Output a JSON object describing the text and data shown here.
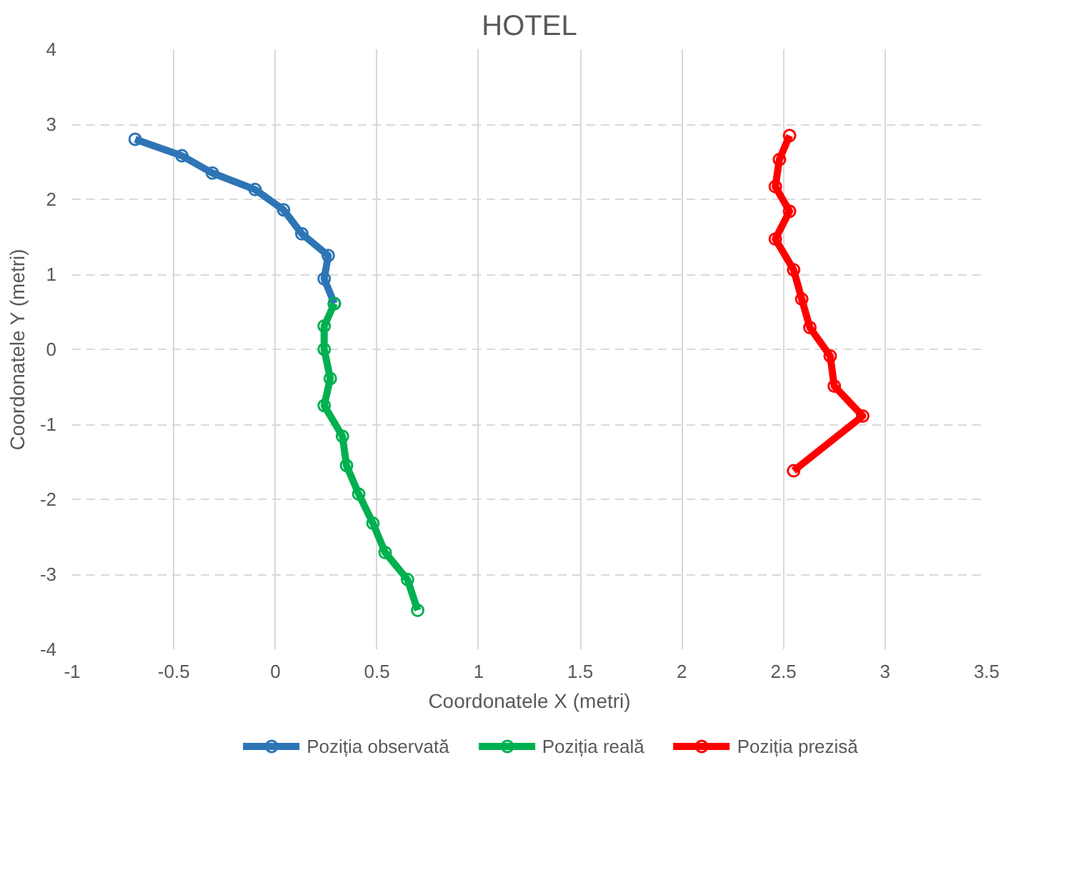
{
  "chart_data": {
    "type": "line",
    "title": "HOTEL",
    "xlabel": "Coordonatele X (metri)",
    "ylabel": "Coordonatele Y (metri)",
    "xlim": [
      -1,
      3.5
    ],
    "ylim": [
      -4,
      4
    ],
    "xticks": [
      -1,
      -0.5,
      0,
      0.5,
      1,
      1.5,
      2,
      2.5,
      3,
      3.5
    ],
    "yticks": [
      -4,
      -3,
      -2,
      -1,
      0,
      1,
      2,
      3,
      4
    ],
    "grid": true,
    "legend": "bottom",
    "marker": "circle",
    "line_style": "solid",
    "series": [
      {
        "name": "Poziția observată",
        "color": "#2e75b6",
        "x": [
          -0.69,
          -0.46,
          -0.31,
          -0.1,
          0.04,
          0.13,
          0.26,
          0.24,
          0.29
        ],
        "values": [
          2.8,
          2.58,
          2.35,
          2.13,
          1.86,
          1.54,
          1.25,
          0.94,
          0.61
        ]
      },
      {
        "name": "Poziția reală",
        "color": "#00b050",
        "x": [
          0.29,
          0.24,
          0.24,
          0.27,
          0.24,
          0.33,
          0.35,
          0.41,
          0.48,
          0.54,
          0.65,
          0.7
        ],
        "values": [
          0.61,
          0.31,
          0.0,
          -0.39,
          -0.75,
          -1.16,
          -1.55,
          -1.93,
          -2.32,
          -2.71,
          -3.07,
          -3.48
        ]
      },
      {
        "name": "Poziția prezisă",
        "color": "#ff0000",
        "x": [
          2.53,
          2.48,
          2.46,
          2.53,
          2.46,
          2.55,
          2.59,
          2.63,
          2.73,
          2.75,
          2.89,
          2.55
        ],
        "values": [
          2.85,
          2.53,
          2.17,
          1.84,
          1.47,
          1.06,
          0.67,
          0.29,
          -0.09,
          -0.49,
          -0.89,
          -1.62
        ]
      }
    ]
  }
}
